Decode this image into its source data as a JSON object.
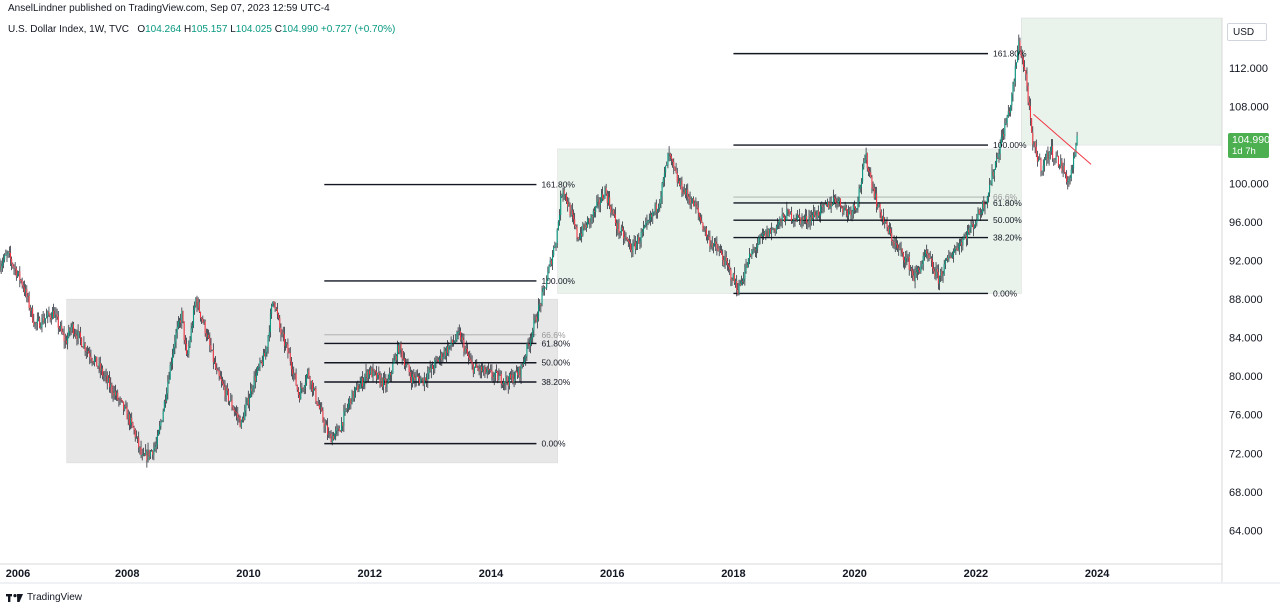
{
  "header": {
    "publisher_line": "AnselLindner published on TradingView.com, Sep 07, 2023 12:59 UTC-4"
  },
  "legend": {
    "symbol": "U.S. Dollar Index, 1W, TVC",
    "open_label": "O",
    "open": "104.264",
    "high_label": "H",
    "high": "105.157",
    "low_label": "L",
    "low": "104.025",
    "close_label": "C",
    "close": "104.990",
    "change": "+0.727 (+0.70%)"
  },
  "currency_button": "USD",
  "last_price": {
    "value": "104.990",
    "countdown": "1d 7h"
  },
  "footer": {
    "brand": "TradingView",
    "logo_icon": "tradingview-logo-icon"
  },
  "colors": {
    "up": "#089981",
    "down": "#f23645",
    "accent": "#4caf50",
    "trendline": "#f23645"
  },
  "chart_data": {
    "type": "candlestick",
    "interval": "1W",
    "y_axis": {
      "ticks": [
        "64.000",
        "68.000",
        "72.000",
        "76.000",
        "80.000",
        "84.000",
        "88.000",
        "92.000",
        "96.000",
        "100.000",
        "104.000",
        "108.000",
        "112.000"
      ],
      "range": [
        60.5,
        117.2
      ],
      "position": "right"
    },
    "x_axis": {
      "ticks": [
        "2006",
        "2008",
        "2010",
        "2012",
        "2014",
        "2016",
        "2018",
        "2020",
        "2022",
        "2024"
      ],
      "range": [
        2005.9,
        2026.06
      ]
    },
    "price_path": [
      [
        2005.9,
        91.5
      ],
      [
        2006.05,
        92.6
      ],
      [
        2006.3,
        89.5
      ],
      [
        2006.5,
        85.3
      ],
      [
        2006.8,
        86.6
      ],
      [
        2007.0,
        83.5
      ],
      [
        2007.1,
        85.2
      ],
      [
        2007.5,
        81.4
      ],
      [
        2007.8,
        78.3
      ],
      [
        2008.0,
        76.2
      ],
      [
        2008.15,
        74.0
      ],
      [
        2008.27,
        71.3
      ],
      [
        2008.5,
        72.8
      ],
      [
        2008.6,
        76.1
      ],
      [
        2008.8,
        83.8
      ],
      [
        2008.92,
        86.4
      ],
      [
        2009.0,
        81.6
      ],
      [
        2009.15,
        88.0
      ],
      [
        2009.3,
        85.0
      ],
      [
        2009.5,
        80.2
      ],
      [
        2009.7,
        77.6
      ],
      [
        2009.9,
        75.0
      ],
      [
        2010.1,
        79.5
      ],
      [
        2010.3,
        82.3
      ],
      [
        2010.43,
        88.3
      ],
      [
        2010.55,
        84.5
      ],
      [
        2010.7,
        82.0
      ],
      [
        2010.85,
        78.0
      ],
      [
        2011.0,
        80.4
      ],
      [
        2011.2,
        76.4
      ],
      [
        2011.35,
        73.6
      ],
      [
        2011.5,
        74.2
      ],
      [
        2011.7,
        77.6
      ],
      [
        2011.9,
        79.5
      ],
      [
        2012.0,
        80.6
      ],
      [
        2012.3,
        79.0
      ],
      [
        2012.5,
        83.1
      ],
      [
        2012.7,
        79.9
      ],
      [
        2012.9,
        79.6
      ],
      [
        2013.2,
        82.1
      ],
      [
        2013.5,
        84.3
      ],
      [
        2013.7,
        81.0
      ],
      [
        2014.0,
        80.2
      ],
      [
        2014.3,
        79.5
      ],
      [
        2014.5,
        80.5
      ],
      [
        2014.7,
        84.7
      ],
      [
        2014.9,
        89.0
      ],
      [
        2015.1,
        94.5
      ],
      [
        2015.2,
        99.8
      ],
      [
        2015.45,
        94.4
      ],
      [
        2015.7,
        96.7
      ],
      [
        2015.9,
        99.3
      ],
      [
        2016.1,
        95.5
      ],
      [
        2016.35,
        93.2
      ],
      [
        2016.6,
        95.6
      ],
      [
        2016.8,
        98.3
      ],
      [
        2016.95,
        103.0
      ],
      [
        2017.1,
        100.2
      ],
      [
        2017.4,
        97.5
      ],
      [
        2017.6,
        94.3
      ],
      [
        2017.8,
        92.8
      ],
      [
        2018.0,
        90.3
      ],
      [
        2018.1,
        89.0
      ],
      [
        2018.3,
        92.5
      ],
      [
        2018.5,
        94.5
      ],
      [
        2018.7,
        95.4
      ],
      [
        2018.9,
        96.8
      ],
      [
        2019.2,
        96.2
      ],
      [
        2019.5,
        97.3
      ],
      [
        2019.7,
        98.5
      ],
      [
        2019.9,
        97.0
      ],
      [
        2020.05,
        97.8
      ],
      [
        2020.2,
        102.8
      ],
      [
        2020.4,
        97.6
      ],
      [
        2020.55,
        95.4
      ],
      [
        2020.7,
        93.5
      ],
      [
        2020.9,
        91.9
      ],
      [
        2021.0,
        90.2
      ],
      [
        2021.2,
        92.6
      ],
      [
        2021.4,
        90.1
      ],
      [
        2021.6,
        92.6
      ],
      [
        2021.8,
        94.2
      ],
      [
        2022.0,
        96.0
      ],
      [
        2022.2,
        98.6
      ],
      [
        2022.4,
        103.6
      ],
      [
        2022.6,
        108.4
      ],
      [
        2022.73,
        114.7
      ],
      [
        2022.85,
        110.9
      ],
      [
        2022.95,
        104.2
      ],
      [
        2023.1,
        101.7
      ],
      [
        2023.25,
        103.5
      ],
      [
        2023.45,
        101.6
      ],
      [
        2023.55,
        100.1
      ],
      [
        2023.68,
        103.8
      ]
    ],
    "ranges": [
      {
        "x": [
          2007.0,
          2015.1
        ],
        "y": [
          71.0,
          88.0
        ],
        "fill": "#e7e7e7"
      },
      {
        "x": [
          2015.1,
          2022.75
        ],
        "y": [
          88.6,
          103.6
        ],
        "fill": "#e9f3ec"
      },
      {
        "x": [
          2022.75,
          2026.06
        ],
        "y": [
          104.0,
          117.2
        ],
        "fill": "#e9f3ec"
      }
    ],
    "fib_sets": [
      {
        "x": [
          2011.25,
          2014.75
        ],
        "levels": [
          {
            "label": "161.80%",
            "price": 99.9
          },
          {
            "label": "100.00%",
            "price": 89.9
          },
          {
            "label": "66.6%",
            "price": 84.3
          },
          {
            "label": "61.80%",
            "price": 83.4
          },
          {
            "label": "50.00%",
            "price": 81.4
          },
          {
            "label": "38.20%",
            "price": 79.4
          },
          {
            "label": "0.00%",
            "price": 73.0
          }
        ]
      },
      {
        "x": [
          2018.0,
          2022.2
        ],
        "levels": [
          {
            "label": "161.80%",
            "price": 113.5
          },
          {
            "label": "100.00%",
            "price": 104.0
          },
          {
            "label": "66.6%",
            "price": 98.6
          },
          {
            "label": "61.80%",
            "price": 98.0
          },
          {
            "label": "50.00%",
            "price": 96.2
          },
          {
            "label": "38.20%",
            "price": 94.4
          },
          {
            "label": "0.00%",
            "price": 88.6
          }
        ]
      }
    ],
    "trendline": {
      "from": [
        2022.95,
        107.2
      ],
      "to": [
        2023.9,
        102.0
      ]
    },
    "last_close": 104.99,
    "grid": false
  }
}
